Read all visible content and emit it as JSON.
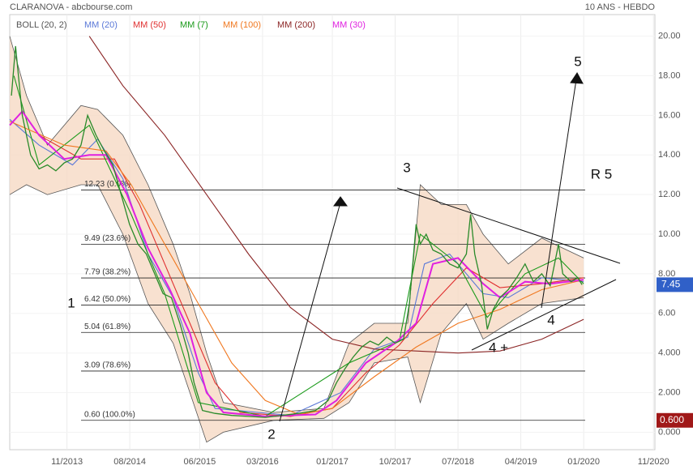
{
  "chart_data": {
    "type": "line",
    "title": "CLARANOVA - abcbourse.com",
    "subtitle": "10 ANS - HEBDO",
    "xlim": [
      2013.15,
      2020.85
    ],
    "ylim": [
      -0.8,
      21.5
    ],
    "xticks": [
      {
        "value": 2013.833,
        "label": "11/2013"
      },
      {
        "value": 2014.583,
        "label": "08/2014"
      },
      {
        "value": 2015.417,
        "label": "06/2015"
      },
      {
        "value": 2016.167,
        "label": "03/2016"
      },
      {
        "value": 2017.0,
        "label": "01/2017"
      },
      {
        "value": 2017.75,
        "label": "10/2017"
      },
      {
        "value": 2018.5,
        "label": "07/2018"
      },
      {
        "value": 2019.25,
        "label": "04/2019"
      },
      {
        "value": 2020.0,
        "label": "01/2020"
      },
      {
        "value": 2020.833,
        "label": "11/2020"
      }
    ],
    "yticks": [
      {
        "value": 0,
        "label": "0.000"
      },
      {
        "value": 2,
        "label": "2.000"
      },
      {
        "value": 4,
        "label": "4.000"
      },
      {
        "value": 6,
        "label": "6.00"
      },
      {
        "value": 8,
        "label": "8.00"
      },
      {
        "value": 10,
        "label": "10.00"
      },
      {
        "value": 12,
        "label": "12.00"
      },
      {
        "value": 14,
        "label": "14.00"
      },
      {
        "value": 16,
        "label": "16.00"
      },
      {
        "value": 18,
        "label": "18.00"
      },
      {
        "value": 20,
        "label": "20.00"
      }
    ],
    "grid": true,
    "price": {
      "color": "#2a8a2a",
      "x": [
        2013.17,
        2013.22,
        2013.3,
        2013.4,
        2013.5,
        2013.6,
        2013.7,
        2013.8,
        2013.9,
        2014.0,
        2014.08,
        2014.18,
        2014.28,
        2014.38,
        2014.48,
        2014.58,
        2014.68,
        2014.78,
        2014.88,
        2014.98,
        2015.08,
        2015.18,
        2015.28,
        2015.35,
        2015.45,
        2015.6,
        2015.8,
        2016.0,
        2016.2,
        2016.4,
        2016.6,
        2016.8,
        2016.95,
        2017.05,
        2017.15,
        2017.25,
        2017.35,
        2017.45,
        2017.55,
        2017.65,
        2017.75,
        2017.85,
        2017.92,
        2018.0,
        2018.05,
        2018.12,
        2018.2,
        2018.3,
        2018.4,
        2018.5,
        2018.6,
        2018.65,
        2018.7,
        2018.78,
        2018.85,
        2018.92,
        2019.0,
        2019.1,
        2019.2,
        2019.3,
        2019.4,
        2019.5,
        2019.6,
        2019.7,
        2019.75,
        2019.85,
        2019.93,
        2019.98
      ],
      "values": [
        17,
        19.5,
        16,
        14,
        13.3,
        13.5,
        13.2,
        13.6,
        13.8,
        14.5,
        16,
        15,
        14.2,
        13.5,
        12,
        10.5,
        9.5,
        9,
        8,
        7,
        6.8,
        5.5,
        4,
        2.5,
        1.1,
        0.95,
        0.85,
        0.8,
        0.75,
        0.85,
        0.95,
        1.1,
        1.6,
        2.5,
        3.2,
        3.8,
        4.3,
        4.6,
        4.4,
        4.8,
        4.5,
        4.7,
        6.5,
        10.5,
        9.5,
        10,
        9.2,
        9,
        8.5,
        8.3,
        9,
        11,
        9,
        7.5,
        5.2,
        6.2,
        6.8,
        7.2,
        7.8,
        8.5,
        7.6,
        8,
        7.4,
        9.5,
        8,
        7.6,
        7.8,
        7.45
      ]
    },
    "bollinger": {
      "name": "BOLL (20, 2)",
      "color": "#555555",
      "fill": "#f6d9c4",
      "x": [
        2013.15,
        2013.35,
        2013.6,
        2014.0,
        2014.2,
        2014.5,
        2014.8,
        2015.1,
        2015.3,
        2015.5,
        2015.7,
        2016.3,
        2016.9,
        2017.2,
        2017.5,
        2017.9,
        2018.05,
        2018.3,
        2018.6,
        2018.8,
        2019.1,
        2019.5,
        2020.0
      ],
      "upper": [
        20,
        17,
        14.5,
        16.5,
        16.3,
        15,
        12.5,
        9.5,
        7,
        4,
        1.5,
        1.0,
        1.2,
        4.5,
        5.5,
        5.5,
        12.5,
        11.5,
        11.5,
        10,
        8.5,
        9.8,
        8.8
      ],
      "lower": [
        12,
        12.5,
        12,
        12.5,
        12.5,
        10,
        6.5,
        4.5,
        2,
        -0.5,
        0,
        0.6,
        0.7,
        1.5,
        3.5,
        3.8,
        1.5,
        5,
        6.5,
        4.7,
        5.5,
        6.5,
        6.8
      ]
    },
    "series": [
      {
        "name": "MM (20)",
        "color": "#5a78d8",
        "x": [
          2013.15,
          2013.5,
          2013.9,
          2014.2,
          2014.5,
          2014.8,
          2015.1,
          2015.4,
          2015.6,
          2016.5,
          2017.1,
          2017.5,
          2017.9,
          2018.1,
          2018.4,
          2018.8,
          2019.1,
          2019.5,
          2020.0
        ],
        "values": [
          15.8,
          14.5,
          13.5,
          14.8,
          12.8,
          9,
          6.8,
          3,
          1.2,
          0.85,
          2.0,
          4.2,
          4.8,
          8.5,
          9,
          7,
          6.8,
          7.8,
          7.6
        ]
      },
      {
        "name": "MM (50)",
        "color": "#e03030",
        "x": [
          2013.5,
          2014.0,
          2014.4,
          2014.7,
          2015.0,
          2015.3,
          2015.6,
          2015.9,
          2016.5,
          2017.0,
          2017.4,
          2017.8,
          2018.2,
          2018.6,
          2019.0,
          2019.5,
          2020.0
        ],
        "values": [
          15,
          13.8,
          13.8,
          11.5,
          8.5,
          5.5,
          2.5,
          1.0,
          0.8,
          1.2,
          3,
          4.4,
          6.5,
          8.3,
          7.3,
          7.5,
          7.8
        ]
      },
      {
        "name": "MM (7)",
        "color": "#1a9a1a",
        "x": [
          2013.2,
          2013.5,
          2014.1,
          2014.6,
          2015.0,
          2015.4,
          2016.2,
          2017.2,
          2017.8,
          2018.05,
          2018.5,
          2018.85,
          2019.3,
          2019.7,
          2020.0
        ],
        "values": [
          18,
          13.5,
          15.5,
          11,
          7,
          1.5,
          0.8,
          3.5,
          4.6,
          10,
          8.5,
          5.8,
          8,
          8.8,
          7.5
        ]
      },
      {
        "name": "MM (100)",
        "color": "#f07820",
        "x": [
          2013.15,
          2013.8,
          2014.3,
          2014.6,
          2015.0,
          2015.4,
          2015.8,
          2016.2,
          2016.6,
          2017.0,
          2017.5,
          2018.0,
          2018.5,
          2019.0,
          2019.5,
          2020.0
        ],
        "values": [
          15.7,
          14.5,
          14.2,
          12.5,
          9.5,
          6.5,
          3.5,
          1.6,
          0.9,
          1.2,
          2.8,
          4.3,
          5.5,
          6.2,
          7.2,
          7.7
        ]
      },
      {
        "name": "MM (200)",
        "color": "#8b2525",
        "x": [
          2014.1,
          2014.5,
          2015.0,
          2015.5,
          2016.0,
          2016.5,
          2017.0,
          2017.5,
          2018.0,
          2018.5,
          2019.0,
          2019.5,
          2020.0
        ],
        "values": [
          20,
          17.5,
          15,
          12,
          9,
          6.3,
          4.7,
          4.2,
          4.1,
          4.0,
          4.1,
          4.7,
          5.7
        ]
      },
      {
        "name": "MM (30)",
        "color": "#e020e0",
        "x": [
          2013.15,
          2013.3,
          2013.5,
          2013.8,
          2014.1,
          2014.3,
          2014.55,
          2014.8,
          2015.05,
          2015.3,
          2015.5,
          2015.7,
          2016.2,
          2016.8,
          2017.05,
          2017.4,
          2017.75,
          2018.0,
          2018.2,
          2018.5,
          2018.8,
          2019.0,
          2019.3,
          2019.6,
          2020.0
        ],
        "values": [
          15.5,
          16.2,
          15,
          13.8,
          14,
          14,
          12,
          9.3,
          7.3,
          5,
          2.0,
          1.0,
          0.8,
          0.9,
          1.6,
          3.5,
          4.5,
          5.5,
          8.5,
          8.8,
          7.5,
          6.8,
          7.6,
          7.5,
          7.7
        ]
      }
    ],
    "fib_levels": [
      {
        "value": 12.23,
        "label": "12.23 (0.0%)"
      },
      {
        "value": 9.49,
        "label": "9.49 (23.6%)"
      },
      {
        "value": 7.79,
        "label": "7.79 (38.2%)"
      },
      {
        "value": 6.42,
        "label": "6.42 (50.0%)"
      },
      {
        "value": 5.04,
        "label": "5.04 (61.8%)"
      },
      {
        "value": 3.09,
        "label": "3.09 (78.6%)"
      },
      {
        "value": 0.6,
        "label": "0.60 (100.0%)"
      }
    ],
    "last_price": 7.45,
    "low_marker": {
      "value": 0.6,
      "label": "0.600"
    },
    "annotations": [
      "1",
      "2",
      "3",
      "4",
      "4 +",
      "5",
      "R 5"
    ]
  }
}
